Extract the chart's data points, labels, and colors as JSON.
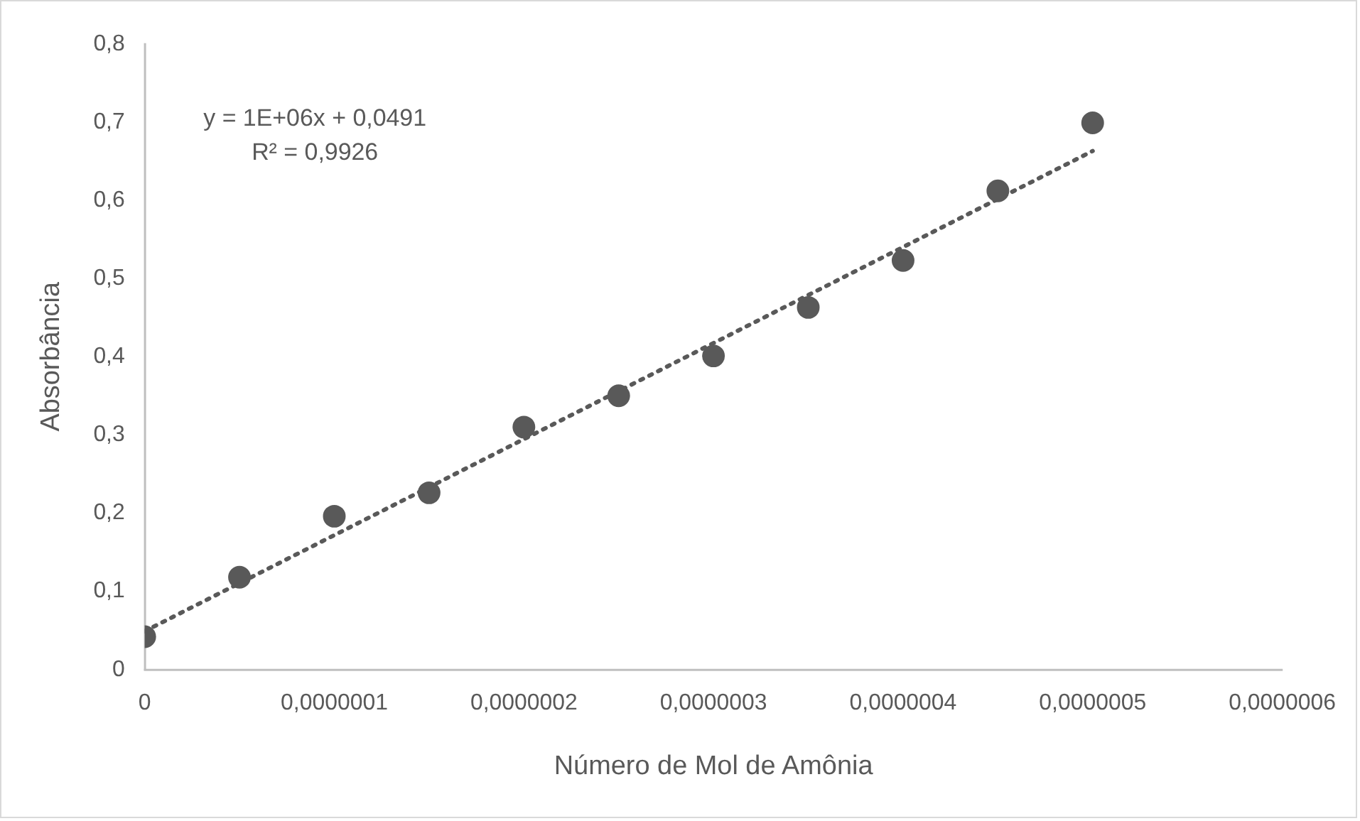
{
  "chart_data": {
    "type": "scatter",
    "xlabel": "Número de Mol de Amônia",
    "ylabel": "Absorbância",
    "x": [
      0,
      5e-08,
      1e-07,
      1.5e-07,
      2e-07,
      2.5e-07,
      3e-07,
      3.5e-07,
      4e-07,
      4.5e-07,
      5e-07
    ],
    "series": [
      {
        "type": "scatter",
        "color": "#595959",
        "marker": "circle",
        "values": [
          0.042,
          0.118,
          0.196,
          0.226,
          0.31,
          0.35,
          0.401,
          0.463,
          0.523,
          0.612,
          0.699
        ]
      },
      {
        "type": "line",
        "color": "#595959",
        "line_style": "dotted",
        "marker": "none",
        "x": [
          0,
          5e-07
        ],
        "values": [
          0.049,
          0.663
        ]
      }
    ],
    "xlim": [
      0,
      6e-07
    ],
    "ylim": [
      0,
      0.8
    ],
    "xticks": [
      0,
      {
        "value": 1e-07,
        "label": "0,0000001"
      },
      {
        "value": 2e-07,
        "label": "0,0000002"
      },
      {
        "value": 3e-07,
        "label": "0,0000003"
      },
      {
        "value": 4e-07,
        "label": "0,0000004"
      },
      {
        "value": 5e-07,
        "label": "0,0000005"
      },
      {
        "value": 6e-07,
        "label": "0,0000006"
      }
    ],
    "yticks": [
      0,
      {
        "value": 0.1,
        "label": "0,1"
      },
      {
        "value": 0.2,
        "label": "0,2"
      },
      {
        "value": 0.3,
        "label": "0,3"
      },
      {
        "value": 0.4,
        "label": "0,4"
      },
      {
        "value": 0.5,
        "label": "0,5"
      },
      {
        "value": 0.6,
        "label": "0,6"
      },
      {
        "value": 0.7,
        "label": "0,7"
      },
      {
        "value": 0.8,
        "label": "0,8"
      }
    ],
    "grid": false,
    "legend": false,
    "annotations": [
      "y = 1E+06x + 0,0491",
      "R² = 0,9926"
    ]
  }
}
